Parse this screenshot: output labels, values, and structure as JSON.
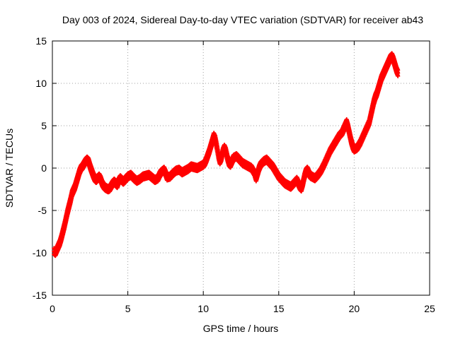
{
  "chart_data": {
    "type": "scatter",
    "title": "Day 003 of 2024, Sidereal Day-to-day VTEC variation (SDTVAR) for receiver ab43",
    "xlabel": "GPS time / hours",
    "ylabel": "SDTVAR / TECUs",
    "xlim": [
      0,
      25
    ],
    "ylim": [
      -15,
      15
    ],
    "xticks": [
      "0",
      "5",
      "10",
      "15",
      "20",
      "25"
    ],
    "yticks": [
      "-15",
      "-10",
      "-5",
      "0",
      "5",
      "10",
      "15"
    ],
    "grid": true,
    "marker": "plus",
    "color": "#ff0000",
    "series": [
      {
        "name": "SDTVAR",
        "points": [
          [
            0.1,
            -9.8
          ],
          [
            0.2,
            -10.0
          ],
          [
            0.3,
            -9.6
          ],
          [
            0.4,
            -9.2
          ],
          [
            0.5,
            -8.8
          ],
          [
            0.6,
            -8.2
          ],
          [
            0.7,
            -7.5
          ],
          [
            0.8,
            -6.8
          ],
          [
            0.9,
            -6.0
          ],
          [
            1.0,
            -5.2
          ],
          [
            1.1,
            -4.5
          ],
          [
            1.2,
            -3.8
          ],
          [
            1.3,
            -3.0
          ],
          [
            1.4,
            -2.6
          ],
          [
            1.5,
            -2.2
          ],
          [
            1.6,
            -1.6
          ],
          [
            1.7,
            -1.0
          ],
          [
            1.8,
            -0.4
          ],
          [
            1.9,
            0.0
          ],
          [
            2.0,
            0.2
          ],
          [
            2.1,
            0.5
          ],
          [
            2.2,
            0.8
          ],
          [
            2.3,
            1.0
          ],
          [
            2.4,
            0.8
          ],
          [
            2.5,
            0.2
          ],
          [
            2.6,
            -0.3
          ],
          [
            2.7,
            -0.8
          ],
          [
            2.8,
            -1.2
          ],
          [
            2.9,
            -1.4
          ],
          [
            3.0,
            -1.2
          ],
          [
            3.1,
            -1.0
          ],
          [
            3.2,
            -1.3
          ],
          [
            3.3,
            -1.8
          ],
          [
            3.4,
            -2.1
          ],
          [
            3.5,
            -2.3
          ],
          [
            3.6,
            -2.4
          ],
          [
            3.7,
            -2.5
          ],
          [
            3.8,
            -2.4
          ],
          [
            3.9,
            -2.1
          ],
          [
            4.0,
            -1.8
          ],
          [
            4.1,
            -1.6
          ],
          [
            4.2,
            -1.8
          ],
          [
            4.3,
            -2.0
          ],
          [
            4.4,
            -1.5
          ],
          [
            4.5,
            -1.2
          ],
          [
            4.6,
            -1.4
          ],
          [
            4.7,
            -1.6
          ],
          [
            4.8,
            -1.4
          ],
          [
            4.9,
            -1.2
          ],
          [
            5.0,
            -1.0
          ],
          [
            5.2,
            -0.8
          ],
          [
            5.4,
            -1.2
          ],
          [
            5.6,
            -1.5
          ],
          [
            5.8,
            -1.3
          ],
          [
            6.0,
            -1.0
          ],
          [
            6.2,
            -0.9
          ],
          [
            6.4,
            -0.8
          ],
          [
            6.6,
            -1.1
          ],
          [
            6.8,
            -1.4
          ],
          [
            7.0,
            -1.2
          ],
          [
            7.1,
            -0.8
          ],
          [
            7.2,
            -0.5
          ],
          [
            7.4,
            -0.2
          ],
          [
            7.5,
            -0.6
          ],
          [
            7.6,
            -1.1
          ],
          [
            7.8,
            -1.0
          ],
          [
            8.0,
            -0.6
          ],
          [
            8.2,
            -0.3
          ],
          [
            8.4,
            -0.2
          ],
          [
            8.6,
            -0.5
          ],
          [
            8.8,
            -0.3
          ],
          [
            9.0,
            -0.1
          ],
          [
            9.2,
            0.2
          ],
          [
            9.4,
            0.1
          ],
          [
            9.6,
            0.0
          ],
          [
            9.8,
            0.2
          ],
          [
            10.0,
            0.4
          ],
          [
            10.1,
            0.6
          ],
          [
            10.2,
            1.0
          ],
          [
            10.3,
            1.5
          ],
          [
            10.4,
            2.0
          ],
          [
            10.5,
            2.6
          ],
          [
            10.6,
            3.2
          ],
          [
            10.7,
            3.8
          ],
          [
            10.8,
            3.4
          ],
          [
            10.9,
            2.5
          ],
          [
            11.0,
            1.5
          ],
          [
            11.1,
            0.8
          ],
          [
            11.2,
            1.2
          ],
          [
            11.3,
            2.0
          ],
          [
            11.4,
            2.4
          ],
          [
            11.5,
            2.0
          ],
          [
            11.6,
            1.2
          ],
          [
            11.7,
            0.6
          ],
          [
            11.8,
            0.4
          ],
          [
            11.9,
            0.8
          ],
          [
            12.0,
            1.2
          ],
          [
            12.2,
            1.4
          ],
          [
            12.4,
            1.0
          ],
          [
            12.6,
            0.6
          ],
          [
            12.8,
            0.4
          ],
          [
            13.0,
            0.2
          ],
          [
            13.2,
            0.0
          ],
          [
            13.4,
            -0.6
          ],
          [
            13.5,
            -1.2
          ],
          [
            13.6,
            -0.6
          ],
          [
            13.7,
            0.0
          ],
          [
            13.8,
            0.4
          ],
          [
            14.0,
            0.8
          ],
          [
            14.2,
            1.0
          ],
          [
            14.4,
            0.6
          ],
          [
            14.6,
            0.2
          ],
          [
            14.8,
            -0.4
          ],
          [
            15.0,
            -1.0
          ],
          [
            15.2,
            -1.4
          ],
          [
            15.4,
            -1.8
          ],
          [
            15.6,
            -2.0
          ],
          [
            15.8,
            -2.2
          ],
          [
            16.0,
            -1.8
          ],
          [
            16.2,
            -1.4
          ],
          [
            16.3,
            -1.8
          ],
          [
            16.4,
            -2.2
          ],
          [
            16.5,
            -2.4
          ],
          [
            16.6,
            -1.8
          ],
          [
            16.7,
            -1.0
          ],
          [
            16.8,
            -0.4
          ],
          [
            16.9,
            -0.2
          ],
          [
            17.0,
            -0.6
          ],
          [
            17.1,
            -0.9
          ],
          [
            17.2,
            -1.0
          ],
          [
            17.4,
            -1.2
          ],
          [
            17.6,
            -0.8
          ],
          [
            17.8,
            -0.3
          ],
          [
            18.0,
            0.4
          ],
          [
            18.2,
            1.2
          ],
          [
            18.4,
            2.0
          ],
          [
            18.6,
            2.6
          ],
          [
            18.8,
            3.2
          ],
          [
            19.0,
            3.8
          ],
          [
            19.2,
            4.2
          ],
          [
            19.3,
            4.6
          ],
          [
            19.4,
            5.0
          ],
          [
            19.5,
            5.4
          ],
          [
            19.6,
            4.8
          ],
          [
            19.7,
            4.0
          ],
          [
            19.8,
            3.2
          ],
          [
            19.9,
            2.6
          ],
          [
            20.0,
            2.2
          ],
          [
            20.2,
            2.4
          ],
          [
            20.4,
            3.0
          ],
          [
            20.6,
            3.8
          ],
          [
            20.8,
            4.6
          ],
          [
            21.0,
            5.4
          ],
          [
            21.1,
            6.2
          ],
          [
            21.2,
            7.0
          ],
          [
            21.3,
            7.8
          ],
          [
            21.4,
            8.4
          ],
          [
            21.5,
            8.8
          ],
          [
            21.6,
            9.4
          ],
          [
            21.7,
            10.0
          ],
          [
            21.8,
            10.6
          ],
          [
            21.9,
            11.0
          ],
          [
            22.0,
            11.4
          ],
          [
            22.1,
            11.8
          ],
          [
            22.2,
            12.2
          ],
          [
            22.3,
            12.6
          ],
          [
            22.4,
            13.0
          ],
          [
            22.5,
            13.2
          ],
          [
            22.6,
            12.8
          ],
          [
            22.7,
            12.2
          ],
          [
            22.8,
            11.6
          ],
          [
            22.9,
            11.2
          ]
        ]
      }
    ]
  }
}
